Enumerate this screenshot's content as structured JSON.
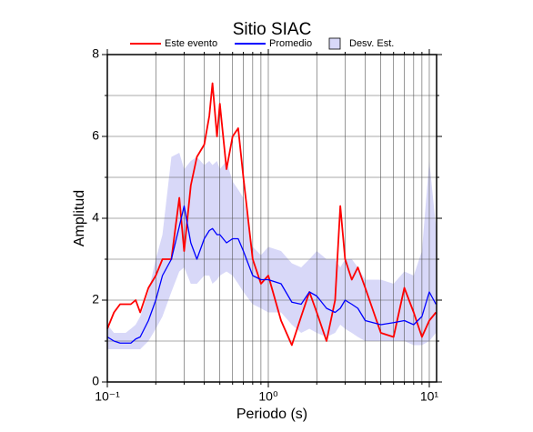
{
  "chart_data": {
    "type": "line",
    "title": "Sitio SIAC",
    "x_label": "Periodo (s)",
    "y_label": "Amplitud",
    "xscale": "log",
    "xlim": [
      0.1,
      11.1
    ],
    "ylim": [
      0,
      8
    ],
    "xticks": [
      {
        "value": 0.1,
        "label": "10⁻¹"
      },
      {
        "value": 1,
        "label": "10⁰"
      },
      {
        "value": 10,
        "label": "10¹"
      }
    ],
    "xminor": [
      0.2,
      0.3,
      0.4,
      0.5,
      0.6,
      0.7,
      0.8,
      0.9,
      2,
      3,
      4,
      5,
      6,
      7,
      8,
      9
    ],
    "yticks": [
      0,
      2,
      4,
      6,
      8
    ],
    "yminor": [
      1,
      3,
      5,
      7
    ],
    "grid": true,
    "legend": "top",
    "x": [
      0.1,
      0.11,
      0.12,
      0.13,
      0.14,
      0.15,
      0.16,
      0.18,
      0.2,
      0.22,
      0.25,
      0.28,
      0.3,
      0.33,
      0.36,
      0.4,
      0.43,
      0.45,
      0.48,
      0.5,
      0.55,
      0.6,
      0.65,
      0.7,
      0.8,
      0.9,
      1.0,
      1.2,
      1.4,
      1.6,
      1.8,
      2.0,
      2.3,
      2.6,
      2.8,
      3.0,
      3.3,
      3.6,
      4,
      5,
      6,
      7,
      8,
      9,
      10,
      11
    ],
    "series": [
      {
        "name": "Este evento",
        "color": "#ff0000",
        "values": [
          1.3,
          1.7,
          1.9,
          1.9,
          1.9,
          2.0,
          1.7,
          2.3,
          2.6,
          3.0,
          3.0,
          4.5,
          3.2,
          4.8,
          5.5,
          5.8,
          6.5,
          7.3,
          6.0,
          6.8,
          5.2,
          6.0,
          6.2,
          5.0,
          3.0,
          2.4,
          2.6,
          1.5,
          0.9,
          1.6,
          2.2,
          1.7,
          1.0,
          2.0,
          4.3,
          3.0,
          2.5,
          2.8,
          2.3,
          1.2,
          1.1,
          2.3,
          1.7,
          1.1,
          1.5,
          1.7
        ]
      },
      {
        "name": "Promedio",
        "color": "#0000ff",
        "values": [
          1.1,
          1.0,
          0.95,
          0.95,
          0.95,
          1.05,
          1.1,
          1.5,
          2.0,
          2.6,
          3.0,
          3.8,
          4.3,
          3.4,
          3.0,
          3.5,
          3.7,
          3.75,
          3.6,
          3.6,
          3.4,
          3.5,
          3.5,
          3.2,
          2.6,
          2.5,
          2.5,
          2.4,
          1.95,
          1.9,
          2.2,
          2.1,
          1.8,
          1.7,
          1.8,
          2.0,
          1.9,
          1.8,
          1.5,
          1.4,
          1.45,
          1.5,
          1.4,
          1.6,
          2.2,
          1.9
        ]
      }
    ],
    "band": {
      "name": "Desv. Est.",
      "color": "#d8d8f8",
      "upper": [
        1.4,
        1.2,
        1.2,
        1.2,
        1.3,
        1.4,
        1.6,
        2.2,
        3.0,
        3.6,
        5.5,
        5.6,
        5.2,
        5.4,
        5.5,
        5.3,
        5.4,
        5.3,
        5.4,
        5.2,
        5.4,
        4.9,
        4.7,
        4.5,
        3.3,
        3.1,
        3.3,
        3.2,
        2.9,
        2.8,
        3.0,
        3.2,
        3.0,
        3.0,
        2.8,
        3.0,
        3.0,
        2.8,
        2.5,
        2.5,
        2.4,
        2.7,
        2.6,
        3.2,
        5.4,
        3.8
      ],
      "lower": [
        0.8,
        0.8,
        0.8,
        0.8,
        0.8,
        0.8,
        0.8,
        1.0,
        1.3,
        1.6,
        2.2,
        2.7,
        2.8,
        2.4,
        2.4,
        2.6,
        2.6,
        2.4,
        2.5,
        2.6,
        2.7,
        2.6,
        2.4,
        2.2,
        1.9,
        1.8,
        1.7,
        1.7,
        1.4,
        1.2,
        1.3,
        1.2,
        1.1,
        1.2,
        1.4,
        1.3,
        1.2,
        1.1,
        1.0,
        1.0,
        1.0,
        1.0,
        0.9,
        0.9,
        1.0,
        1.2
      ]
    }
  }
}
